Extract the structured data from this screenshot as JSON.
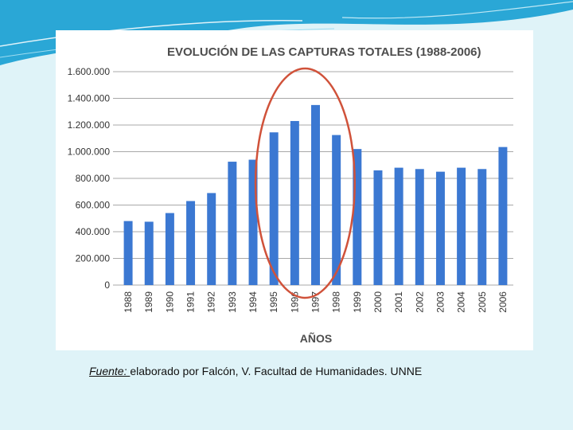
{
  "chart_data": {
    "type": "bar",
    "title": "EVOLUCIÓN DE LAS CAPTURAS TOTALES (1988-2006)",
    "xlabel": "AÑOS",
    "ylabel": "",
    "categories": [
      "1988",
      "1989",
      "1990",
      "1991",
      "1992",
      "1993",
      "1994",
      "1995",
      "1996",
      "1997",
      "1998",
      "1999",
      "2000",
      "2001",
      "2002",
      "2003",
      "2004",
      "2005",
      "2006"
    ],
    "values": [
      480000,
      475000,
      540000,
      630000,
      690000,
      925000,
      940000,
      1145000,
      1230000,
      1350000,
      1125000,
      1020000,
      860000,
      880000,
      870000,
      850000,
      880000,
      870000,
      1035000
    ],
    "ylim": [
      0,
      1600000
    ],
    "y_ticks": [
      0,
      200000,
      400000,
      600000,
      800000,
      1000000,
      1200000,
      1400000,
      1600000
    ],
    "y_tick_labels": [
      "0",
      "200.000",
      "400.000",
      "600.000",
      "800.000",
      "1.000.000",
      "1.200.000",
      "1.400.000",
      "1.600.000"
    ],
    "grid": true,
    "legend": "none",
    "bar_color": "#3b78d2",
    "highlight": {
      "shape": "ellipse",
      "color": "#d0523a",
      "from": "1995",
      "to": "1998"
    }
  },
  "source": {
    "label": "Fuente: ",
    "text": "elaborado por Falcón, V.  Facultad de Humanidades. UNNE"
  }
}
